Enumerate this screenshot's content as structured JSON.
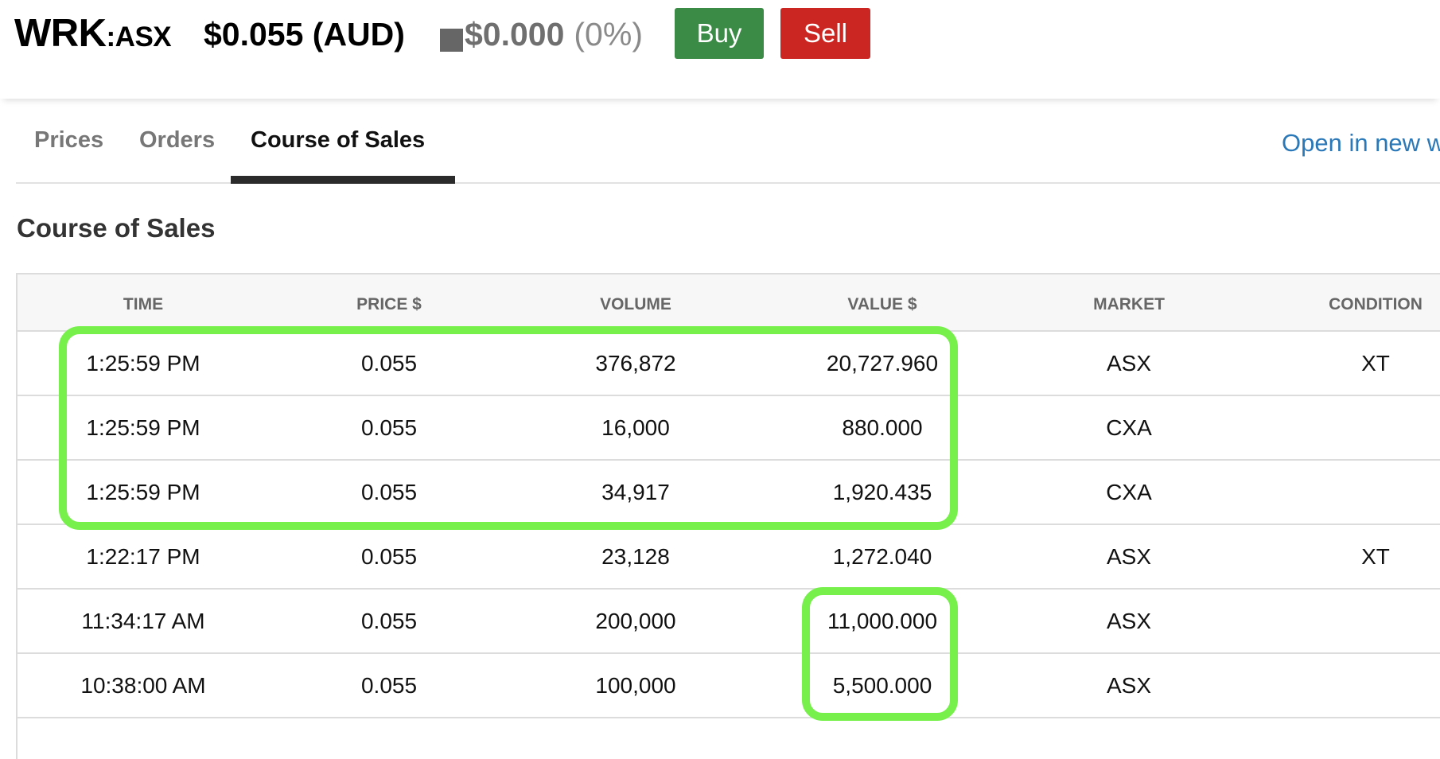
{
  "header": {
    "symbol": "WRK",
    "exchange": ":ASX",
    "price": "$0.055 (AUD)",
    "change_value": "$0.000",
    "change_percent": "(0%)",
    "buy_label": "Buy",
    "sell_label": "Sell",
    "colors": {
      "buy": "#3b8a45",
      "sell": "#cc2622",
      "highlight": "#77f04c",
      "link": "#2a78b8"
    }
  },
  "tabs": [
    {
      "label": "Prices",
      "active": false
    },
    {
      "label": "Orders",
      "active": false
    },
    {
      "label": "Course of Sales",
      "active": true
    }
  ],
  "open_link": "Open in new w",
  "section_title": "Course of Sales",
  "table": {
    "headers": [
      "TIME",
      "PRICE $",
      "VOLUME",
      "VALUE $",
      "MARKET",
      "CONDITION"
    ],
    "rows": [
      [
        "1:25:59 PM",
        "0.055",
        "376,872",
        "20,727.960",
        "ASX",
        "XT"
      ],
      [
        "1:25:59 PM",
        "0.055",
        "16,000",
        "880.000",
        "CXA",
        ""
      ],
      [
        "1:25:59 PM",
        "0.055",
        "34,917",
        "1,920.435",
        "CXA",
        ""
      ],
      [
        "1:22:17 PM",
        "0.055",
        "23,128",
        "1,272.040",
        "ASX",
        "XT"
      ],
      [
        "11:34:17 AM",
        "0.055",
        "200,000",
        "11,000.000",
        "ASX",
        ""
      ],
      [
        "10:38:00 AM",
        "0.055",
        "100,000",
        "5,500.000",
        "ASX",
        ""
      ]
    ]
  }
}
